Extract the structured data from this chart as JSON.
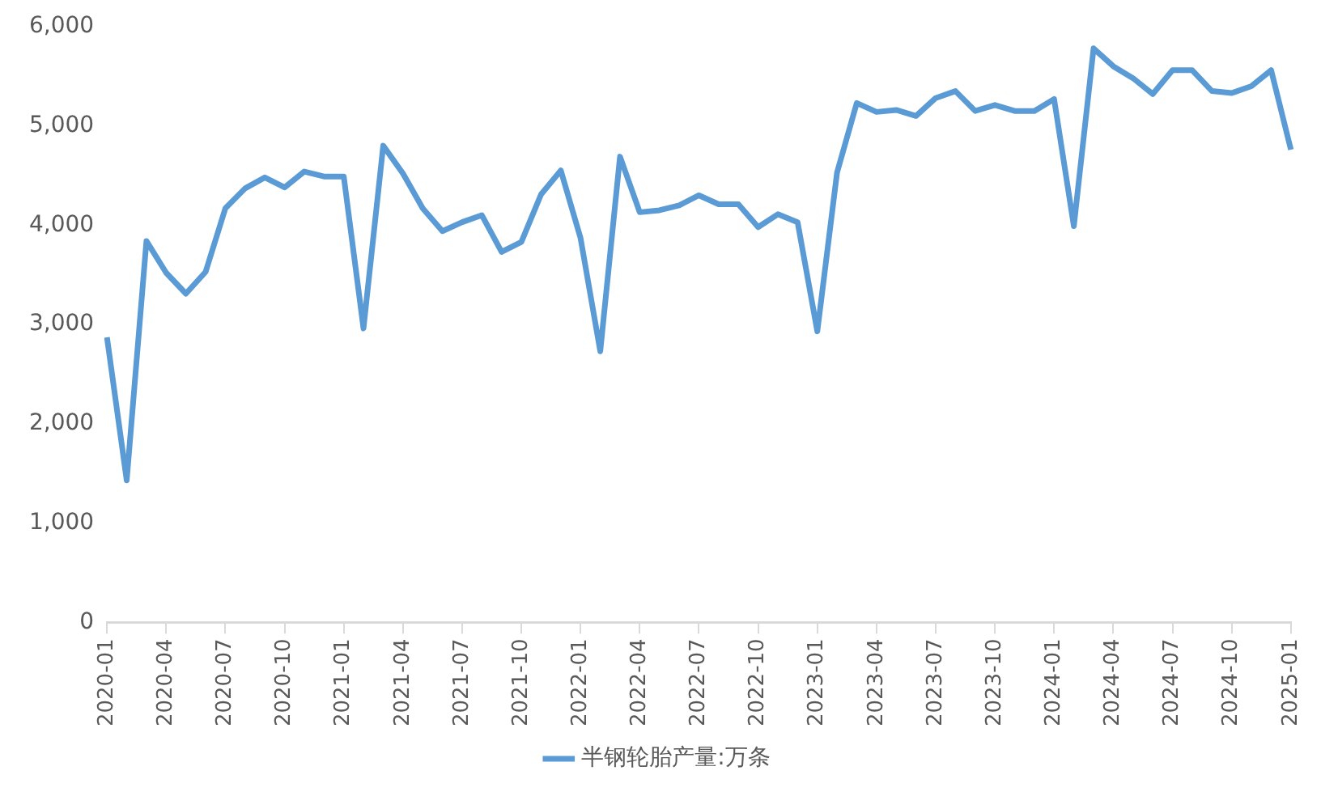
{
  "chart_data": {
    "type": "line",
    "categories": [
      "2020-01",
      null,
      null,
      "2020-04",
      null,
      null,
      "2020-07",
      null,
      null,
      "2020-10",
      null,
      null,
      "2021-01",
      null,
      null,
      "2021-04",
      null,
      null,
      "2021-07",
      null,
      null,
      "2021-10",
      null,
      null,
      "2022-01",
      null,
      null,
      "2022-04",
      null,
      null,
      "2022-07",
      null,
      null,
      "2022-10",
      null,
      null,
      "2023-01",
      null,
      null,
      "2023-04",
      null,
      null,
      "2023-07",
      null,
      null,
      "2023-10",
      null,
      null,
      "2024-01",
      null,
      null,
      "2024-04",
      null,
      null,
      "2024-07",
      null,
      null,
      "2024-10",
      null,
      null,
      "2025-01"
    ],
    "series": [
      {
        "name": "半钢轮胎产量:万条",
        "color": "#5b9bd5",
        "values": [
          2870,
          1430,
          3840,
          3520,
          3310,
          3530,
          4170,
          4370,
          4480,
          4380,
          4540,
          4490,
          4490,
          2960,
          4800,
          4520,
          4170,
          3940,
          4030,
          4100,
          3730,
          3830,
          4310,
          4550,
          3870,
          2730,
          4690,
          4130,
          4150,
          4200,
          4300,
          4210,
          4210,
          3980,
          4110,
          4030,
          2930,
          4530,
          5230,
          5140,
          5160,
          5100,
          5280,
          5350,
          5150,
          5210,
          5150,
          5150,
          5270,
          3990,
          5780,
          5600,
          5480,
          5320,
          5560,
          5560,
          5350,
          5330,
          5400,
          5560,
          4760
        ]
      }
    ],
    "ylim": [
      0,
      6000
    ],
    "yticks": [
      {
        "value": 0,
        "label": "0"
      },
      {
        "value": 1000,
        "label": "1,000"
      },
      {
        "value": 2000,
        "label": "2,000"
      },
      {
        "value": 3000,
        "label": "3,000"
      },
      {
        "value": 4000,
        "label": "4,000"
      },
      {
        "value": 5000,
        "label": "5,000"
      },
      {
        "value": 6000,
        "label": "6,000"
      }
    ],
    "legend": "bottom"
  }
}
